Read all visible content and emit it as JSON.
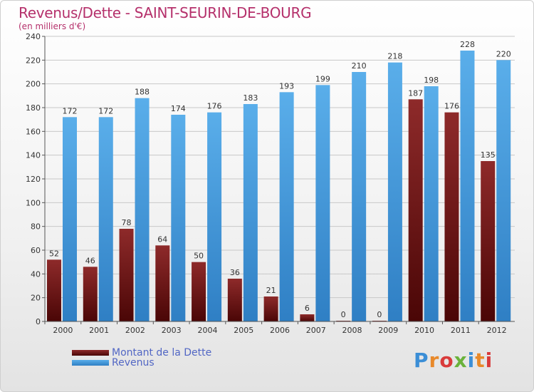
{
  "header": {
    "title": "Revenus/Dette - SAINT-SEURIN-DE-BOURG",
    "subtitle": "(en milliers d'€)"
  },
  "legend": {
    "dette": "Montant de la Dette",
    "revenus": "Revenus"
  },
  "brand": {
    "text": "Proxiti"
  },
  "colors": {
    "dette": "#7a1c1c",
    "revenus": "#4ea3e2",
    "axis_text": "#333333",
    "grid": "#c8c8c8"
  },
  "chart_data": {
    "type": "bar",
    "title": "Revenus/Dette - SAINT-SEURIN-DE-BOURG",
    "ylabel": "(en milliers d'€)",
    "categories": [
      "2000",
      "2001",
      "2002",
      "2003",
      "2004",
      "2005",
      "2006",
      "2007",
      "2008",
      "2009",
      "2010",
      "2011",
      "2012"
    ],
    "series": [
      {
        "name": "Montant de la Dette",
        "values": [
          52,
          46,
          78,
          64,
          50,
          36,
          21,
          6,
          0,
          0,
          187,
          176,
          135
        ]
      },
      {
        "name": "Revenus",
        "values": [
          172,
          172,
          188,
          174,
          176,
          183,
          193,
          199,
          210,
          218,
          198,
          228,
          220
        ]
      }
    ],
    "ylim": [
      0,
      240
    ],
    "yticks": [
      0,
      20,
      40,
      60,
      80,
      100,
      120,
      140,
      160,
      180,
      200,
      220,
      240
    ],
    "grid": true,
    "legend_position": "bottom-left"
  }
}
